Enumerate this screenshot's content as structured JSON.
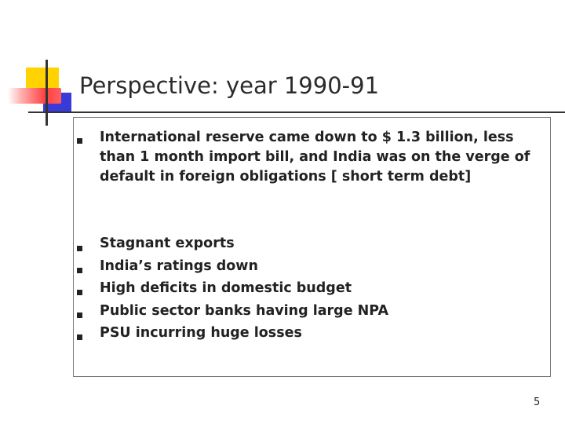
{
  "slide": {
    "title": "Perspective: year 1990-91",
    "page_number": "5"
  },
  "bullets": [
    {
      "lines": [
        "International reserve came down to $ 1.3  billion, less",
        "than 1 month import bill, and India was on the verge of",
        "default in foreign obligations [ short term debt]"
      ]
    },
    {
      "text": "Stagnant exports"
    },
    {
      "text": "India’s ratings down"
    },
    {
      "text": "High deficits in domestic budget"
    },
    {
      "text": "Public sector banks having  large NPA"
    },
    {
      "text": "PSU   incurring huge losses"
    }
  ]
}
